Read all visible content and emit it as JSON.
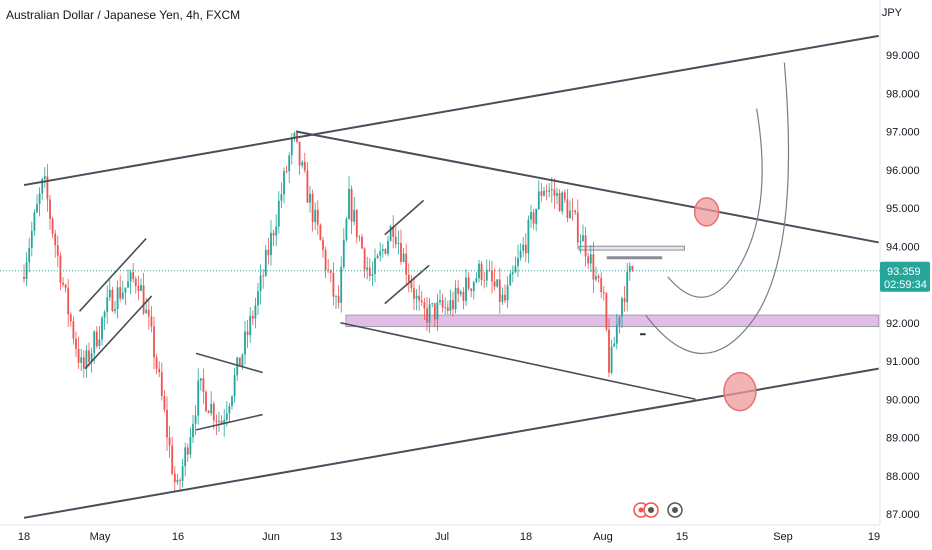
{
  "header": {
    "title": "Australian Dollar / Japanese Yen, 4h, FXCM",
    "currency": "JPY"
  },
  "colors": {
    "up": "#26a69a",
    "down": "#ef5350",
    "lines": "#4a4e5a",
    "zone": "#e1bee7",
    "badge": "#26a69a",
    "circle": "#ef9a9a"
  },
  "chart_data": {
    "type": "candlestick",
    "title": "Australian Dollar / Japanese Yen, 4h, FXCM",
    "y_ticks": [
      "87.000",
      "88.000",
      "89.000",
      "90.000",
      "91.000",
      "92.000",
      "93.000",
      "94.000",
      "95.000",
      "96.000",
      "97.000",
      "98.000",
      "99.000"
    ],
    "x_ticks": [
      "18",
      "May",
      "16",
      "Jun",
      "13",
      "Jul",
      "18",
      "Aug",
      "15",
      "Sep",
      "19"
    ],
    "ylim": [
      86.8,
      100.2
    ],
    "current_price": "93.359",
    "countdown": "02:59:34",
    "grid": false,
    "price_path": [
      {
        "x": "Apr 18",
        "y": 93.2
      },
      {
        "x": "Apr 22",
        "y": 95.7
      },
      {
        "x": "Apr 26",
        "y": 92.6
      },
      {
        "x": "Apr 29",
        "y": 90.7
      },
      {
        "x": "May 4",
        "y": 92.6
      },
      {
        "x": "May 9",
        "y": 93.2
      },
      {
        "x": "May 12",
        "y": 91.2
      },
      {
        "x": "May 16",
        "y": 87.5
      },
      {
        "x": "May 20",
        "y": 90.3
      },
      {
        "x": "May 24",
        "y": 89.4
      },
      {
        "x": "May 27",
        "y": 90.8
      },
      {
        "x": "May 31",
        "y": 92.9
      },
      {
        "x": "Jun 6",
        "y": 96.8
      },
      {
        "x": "Jun 10",
        "y": 94.6
      },
      {
        "x": "Jun 14",
        "y": 92.3
      },
      {
        "x": "Jun 16",
        "y": 95.2
      },
      {
        "x": "Jun 20",
        "y": 93.1
      },
      {
        "x": "Jun 24",
        "y": 94.6
      },
      {
        "x": "Jun 29",
        "y": 92.2
      },
      {
        "x": "Jul 4",
        "y": 92.4
      },
      {
        "x": "Jul 10",
        "y": 93.4
      },
      {
        "x": "Jul 14",
        "y": 92.5
      },
      {
        "x": "Jul 18",
        "y": 94.2
      },
      {
        "x": "Jul 21",
        "y": 95.6
      },
      {
        "x": "Jul 25",
        "y": 95.1
      },
      {
        "x": "Jul 29",
        "y": 93.9
      },
      {
        "x": "Aug 1",
        "y": 92.4
      },
      {
        "x": "Aug 2",
        "y": 90.7
      },
      {
        "x": "Aug 4",
        "y": 92.6
      },
      {
        "x": "Aug 6",
        "y": 93.4
      }
    ],
    "drawings": {
      "upper_channel": [
        {
          "x": "Apr 18",
          "y": 95.6
        },
        {
          "x": "Sep 19",
          "y": 99.5
        }
      ],
      "lower_channel": [
        {
          "x": "Apr 18",
          "y": 86.9
        },
        {
          "x": "Sep 19",
          "y": 90.8
        }
      ],
      "descending_top": [
        {
          "x": "Jun 6",
          "y": 97.0
        },
        {
          "x": "Sep 19",
          "y": 94.1
        }
      ],
      "descending_bottom": [
        {
          "x": "Jun 14",
          "y": 92.0
        },
        {
          "x": "Aug 17",
          "y": 90.0
        }
      ],
      "flag_1_top": [
        {
          "x": "Apr 28",
          "y": 92.3
        },
        {
          "x": "May 10",
          "y": 94.2
        }
      ],
      "flag_1_bottom": [
        {
          "x": "Apr 29",
          "y": 90.8
        },
        {
          "x": "May 11",
          "y": 92.7
        }
      ],
      "triangle_top": [
        {
          "x": "May 19",
          "y": 91.2
        },
        {
          "x": "May 31",
          "y": 90.7
        }
      ],
      "triangle_bottom": [
        {
          "x": "May 19",
          "y": 89.2
        },
        {
          "x": "May 31",
          "y": 89.6
        }
      ],
      "flag_2_top": [
        {
          "x": "Jun 22",
          "y": 94.3
        },
        {
          "x": "Jun 29",
          "y": 95.2
        }
      ],
      "flag_2_bottom": [
        {
          "x": "Jun 22",
          "y": 92.5
        },
        {
          "x": "Jun 30",
          "y": 93.5
        }
      ],
      "resistance_box": {
        "from": "Jul 27",
        "to": "Aug 15",
        "y0": 93.9,
        "y1": 94.0
      },
      "resistance_line": {
        "from": "Aug 1",
        "to": "Aug 11",
        "y": 93.7
      },
      "support_zone": {
        "from": "Jun 15",
        "to": "Sep 19",
        "y0": 91.9,
        "y1": 92.2
      },
      "small_mark": {
        "from": "Aug 7",
        "to": "Aug 8",
        "y": 91.7
      },
      "projection_shallow": [
        {
          "x": "Aug 12",
          "y": 93.2
        },
        {
          "x": "Aug 19",
          "y": 92.0
        },
        {
          "x": "Aug 25",
          "y": 93.5
        },
        {
          "x": "Aug 28",
          "y": 97.6
        }
      ],
      "projection_deep": [
        {
          "x": "Aug 8",
          "y": 92.2
        },
        {
          "x": "Aug 18",
          "y": 90.3
        },
        {
          "x": "Aug 27",
          "y": 92.0
        },
        {
          "x": "Sep 2",
          "y": 98.8
        }
      ],
      "circle_upper": {
        "x": "Aug 19",
        "y": 94.9
      },
      "circle_lower": {
        "x": "Aug 25",
        "y": 90.2
      }
    }
  }
}
